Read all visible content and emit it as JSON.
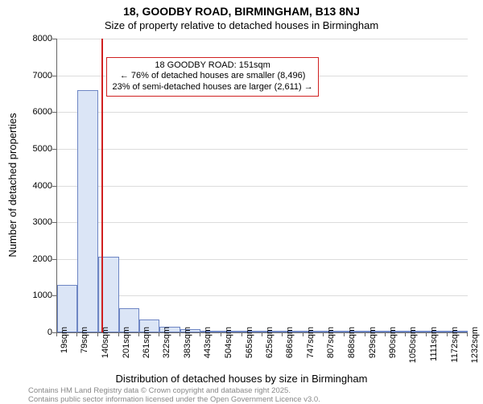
{
  "chart": {
    "type": "histogram",
    "title_main": "18, GOODBY ROAD, BIRMINGHAM, B13 8NJ",
    "title_sub": "Size of property relative to detached houses in Birmingham",
    "ylabel": "Number of detached properties",
    "xlabel": "Distribution of detached houses by size in Birmingham",
    "background_color": "#ffffff",
    "grid_color": "#dcdcdc",
    "axis_color": "#666666",
    "bar_fill": "#dbe5f6",
    "bar_stroke": "#6e86c4",
    "marker_color": "#d02020",
    "title_fontsize": 14,
    "subtitle_fontsize": 13,
    "label_fontsize": 13,
    "tick_fontsize": 11,
    "ylim": [
      0,
      8000
    ],
    "ytick_step": 1000,
    "yticks": [
      0,
      1000,
      2000,
      3000,
      4000,
      5000,
      6000,
      7000,
      8000
    ],
    "x_categories": [
      "19sqm",
      "79sqm",
      "140sqm",
      "201sqm",
      "261sqm",
      "322sqm",
      "383sqm",
      "443sqm",
      "504sqm",
      "565sqm",
      "625sqm",
      "686sqm",
      "747sqm",
      "807sqm",
      "868sqm",
      "929sqm",
      "990sqm",
      "1050sqm",
      "1111sqm",
      "1172sqm",
      "1232sqm"
    ],
    "x_positions": [
      19,
      79,
      140,
      201,
      261,
      322,
      383,
      443,
      504,
      565,
      625,
      686,
      747,
      807,
      868,
      929,
      990,
      1050,
      1111,
      1172,
      1232
    ],
    "bars": [
      {
        "x0": 19,
        "x1": 79,
        "y": 1300
      },
      {
        "x0": 79,
        "x1": 140,
        "y": 6600
      },
      {
        "x0": 140,
        "x1": 201,
        "y": 2050
      },
      {
        "x0": 201,
        "x1": 261,
        "y": 650
      },
      {
        "x0": 261,
        "x1": 322,
        "y": 350
      },
      {
        "x0": 322,
        "x1": 383,
        "y": 150
      },
      {
        "x0": 383,
        "x1": 443,
        "y": 80
      },
      {
        "x0": 443,
        "x1": 504,
        "y": 50
      },
      {
        "x0": 504,
        "x1": 565,
        "y": 30
      },
      {
        "x0": 565,
        "x1": 625,
        "y": 20
      },
      {
        "x0": 625,
        "x1": 686,
        "y": 14
      },
      {
        "x0": 686,
        "x1": 747,
        "y": 10
      },
      {
        "x0": 747,
        "x1": 807,
        "y": 8
      },
      {
        "x0": 807,
        "x1": 868,
        "y": 6
      },
      {
        "x0": 868,
        "x1": 929,
        "y": 5
      },
      {
        "x0": 929,
        "x1": 990,
        "y": 4
      },
      {
        "x0": 990,
        "x1": 1050,
        "y": 3
      },
      {
        "x0": 1050,
        "x1": 1111,
        "y": 3
      },
      {
        "x0": 1111,
        "x1": 1172,
        "y": 2
      },
      {
        "x0": 1172,
        "x1": 1232,
        "y": 2
      }
    ],
    "xlim": [
      19,
      1232
    ],
    "marker_x": 151,
    "callout": {
      "line1": "18 GOODBY ROAD: 151sqm",
      "line2": "← 76% of detached houses are smaller (8,496)",
      "line3": "23% of semi-detached houses are larger (2,611) →",
      "top_frac_from_ymax": 0.062
    }
  },
  "footer": {
    "line1": "Contains HM Land Registry data © Crown copyright and database right 2025.",
    "line2": "Contains public sector information licensed under the Open Government Licence v3.0.",
    "color": "#888888",
    "fontsize": 9.5
  }
}
